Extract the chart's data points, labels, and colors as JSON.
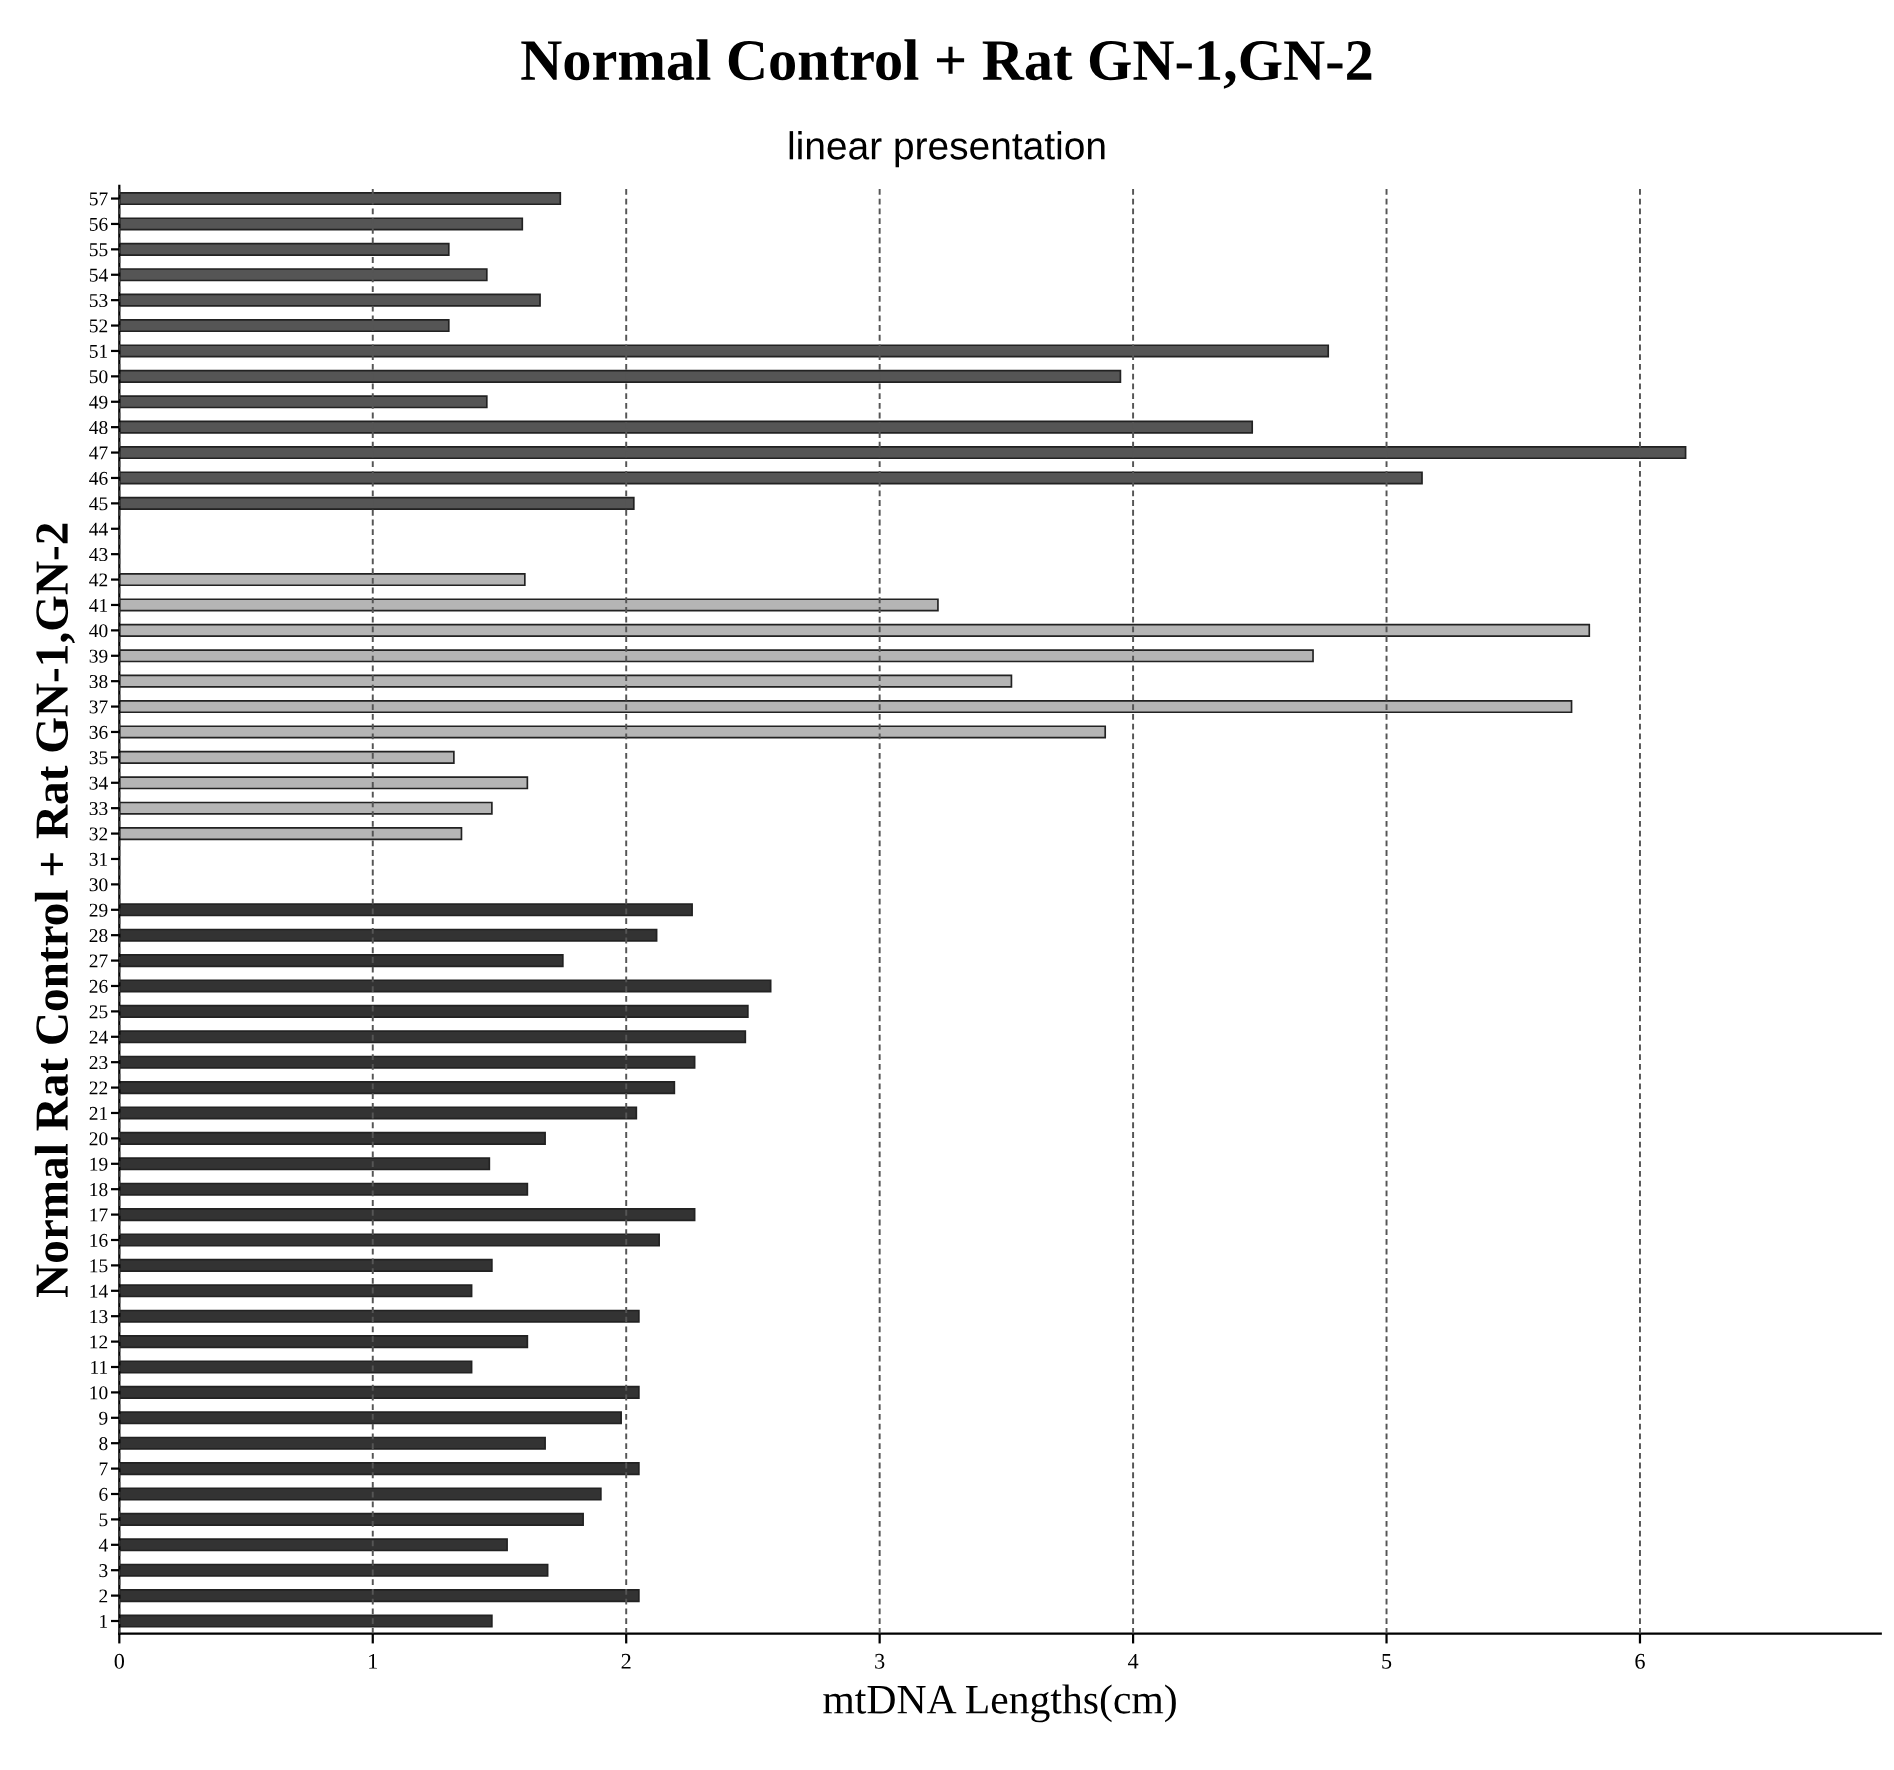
{
  "chart_data": {
    "type": "bar",
    "orientation": "horizontal",
    "title": "Normal Control + Rat GN-1,GN-2",
    "subtitle": "linear presentation",
    "xlabel": "mtDNA Lengths(cm)",
    "ylabel": "Normal Rat Control + Rat GN-1,GN-2",
    "categories": [
      "57",
      "56",
      "55",
      "54",
      "53",
      "52",
      "51",
      "50",
      "49",
      "48",
      "47",
      "46",
      "45",
      "44",
      "43",
      "42",
      "41",
      "40",
      "39",
      "38",
      "37",
      "36",
      "35",
      "34",
      "33",
      "32",
      "31",
      "30",
      "29",
      "28",
      "27",
      "26",
      "25",
      "24",
      "23",
      "22",
      "21",
      "20",
      "19",
      "18",
      "17",
      "16",
      "15",
      "14",
      "13",
      "12",
      "11",
      "10",
      "9",
      "8",
      "7",
      "6",
      "5",
      "4",
      "3",
      "2",
      "1"
    ],
    "values": [
      1.74,
      1.59,
      1.3,
      1.45,
      1.66,
      1.3,
      4.77,
      3.95,
      1.45,
      4.47,
      6.18,
      5.14,
      2.03,
      null,
      null,
      1.6,
      3.23,
      5.8,
      4.71,
      3.52,
      5.73,
      3.89,
      1.32,
      1.61,
      1.47,
      1.35,
      null,
      null,
      2.26,
      2.12,
      1.75,
      2.57,
      2.48,
      2.47,
      2.27,
      2.19,
      2.04,
      1.68,
      1.46,
      1.61,
      2.27,
      2.13,
      1.47,
      1.39,
      2.05,
      1.61,
      1.39,
      2.05,
      1.98,
      1.68,
      2.05,
      1.9,
      1.83,
      1.53,
      1.69,
      2.05,
      1.47
    ],
    "colors": [
      "#555555",
      "#555555",
      "#555555",
      "#555555",
      "#555555",
      "#555555",
      "#555555",
      "#555555",
      "#555555",
      "#555555",
      "#555555",
      "#555555",
      "#555555",
      "#555555",
      "#555555",
      "#b5b5b5",
      "#b5b5b5",
      "#b5b5b5",
      "#b5b5b5",
      "#b5b5b5",
      "#b5b5b5",
      "#b5b5b5",
      "#b5b5b5",
      "#b5b5b5",
      "#b5b5b5",
      "#b5b5b5",
      "#b5b5b5",
      "#b5b5b5",
      "#333333",
      "#333333",
      "#333333",
      "#333333",
      "#333333",
      "#333333",
      "#333333",
      "#333333",
      "#333333",
      "#333333",
      "#333333",
      "#333333",
      "#333333",
      "#333333",
      "#333333",
      "#333333",
      "#333333",
      "#333333",
      "#333333",
      "#333333",
      "#333333",
      "#333333",
      "#333333",
      "#333333",
      "#333333",
      "#333333",
      "#333333",
      "#333333",
      "#333333"
    ],
    "xlim": [
      0,
      6.95
    ],
    "xticks": [
      0,
      1,
      2,
      3,
      4,
      5,
      6
    ],
    "grid": "x"
  }
}
